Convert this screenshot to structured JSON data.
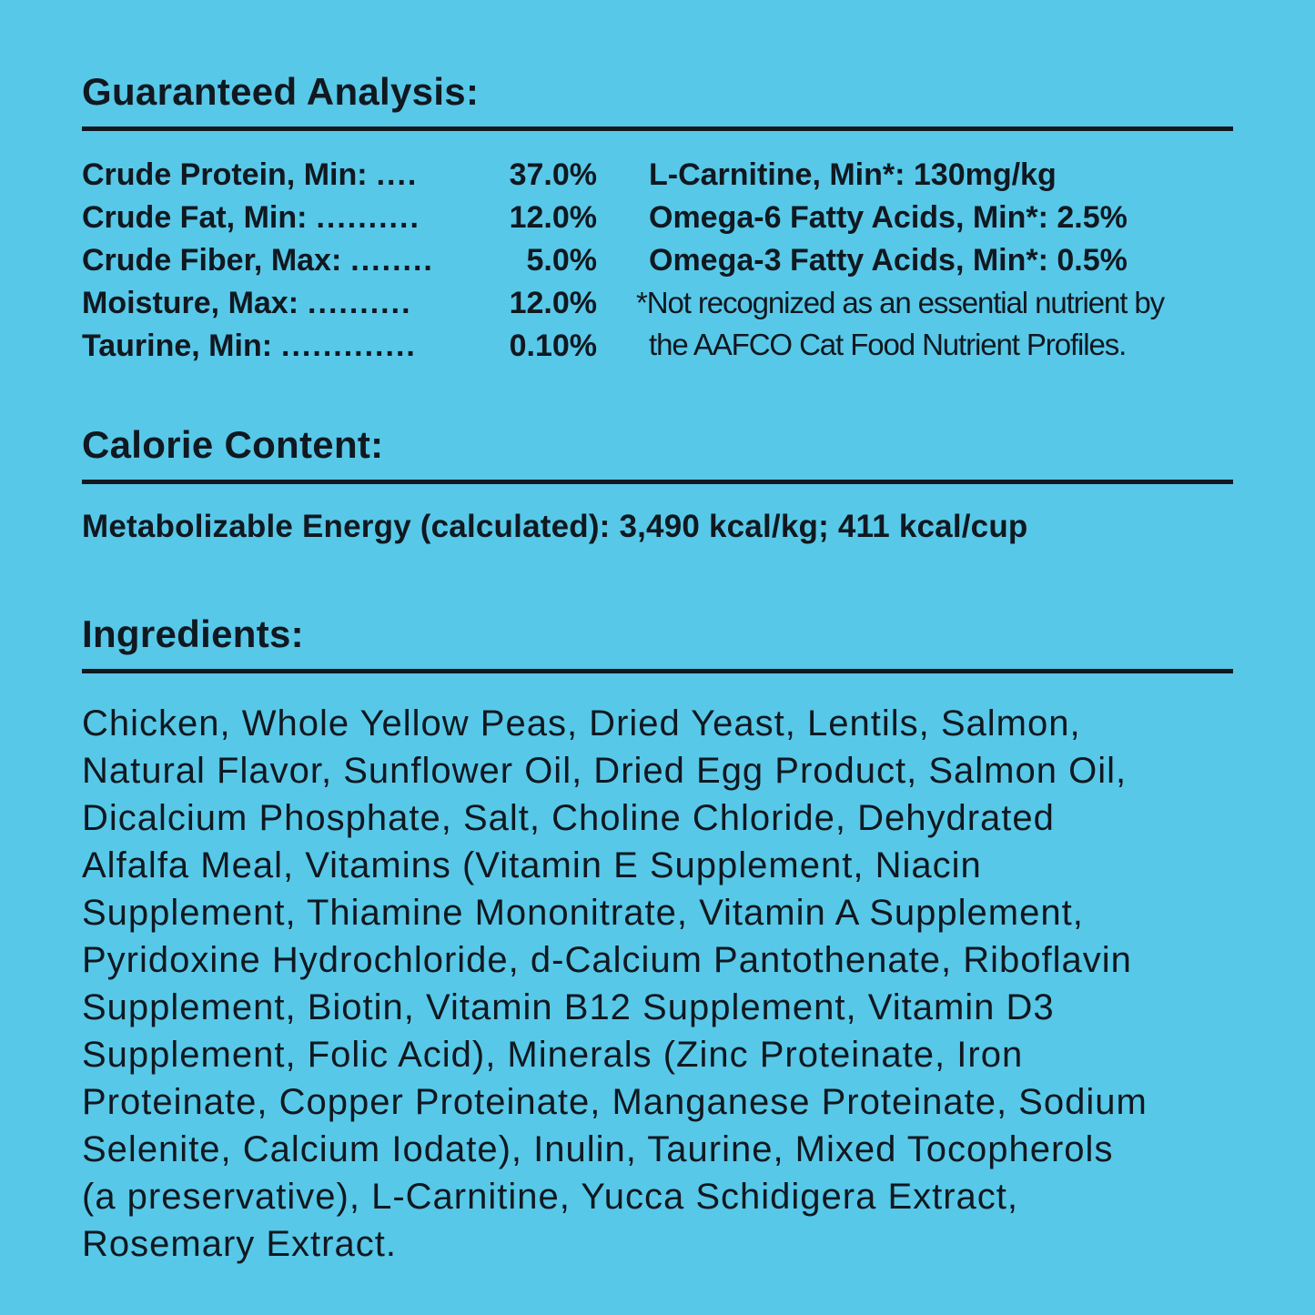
{
  "colors": {
    "background": "#58C8E8",
    "text": "#101820"
  },
  "guaranteed_analysis": {
    "title": "Guaranteed Analysis:",
    "rows": [
      {
        "label": "Crude Protein, Min:",
        "dots": "....",
        "value": "37.0%"
      },
      {
        "label": "Crude Fat, Min:",
        "dots": "..........",
        "value": "12.0%"
      },
      {
        "label": "Crude Fiber, Max:",
        "dots": "........",
        "value": "5.0%"
      },
      {
        "label": "Moisture, Max:",
        "dots": "..........",
        "value": "12.0%"
      },
      {
        "label": "Taurine, Min:",
        "dots": ".............",
        "value": "0.10%"
      }
    ],
    "extra_rows": [
      "L-Carnitine, Min*: 130mg/kg",
      "Omega-6 Fatty Acids, Min*: 2.5%",
      "Omega-3 Fatty Acids, Min*: 0.5%"
    ],
    "footnote_lines": [
      "*Not recognized as an essential nutrient by",
      "the AAFCO Cat Food Nutrient Profiles."
    ]
  },
  "calorie_content": {
    "title": "Calorie Content:",
    "line": "Metabolizable Energy (calculated): 3,490 kcal/kg; 411 kcal/cup"
  },
  "ingredients": {
    "title": "Ingredients:",
    "lines": [
      "Chicken, Whole Yellow Peas, Dried Yeast, Lentils, Salmon,",
      "Natural Flavor, Sunflower Oil, Dried Egg Product, Salmon Oil,",
      "Dicalcium Phosphate, Salt, Choline Chloride, Dehydrated",
      "Alfalfa Meal, Vitamins (Vitamin E Supplement, Niacin",
      "Supplement, Thiamine Mononitrate, Vitamin A Supplement,",
      "Pyridoxine Hydrochloride, d-Calcium Pantothenate, Riboflavin",
      "Supplement, Biotin, Vitamin B12 Supplement, Vitamin D3",
      "Supplement, Folic Acid), Minerals (Zinc Proteinate, Iron",
      "Proteinate, Copper Proteinate, Manganese Proteinate, Sodium",
      "Selenite, Calcium Iodate), Inulin, Taurine, Mixed Tocopherols",
      "(a preservative), L-Carnitine, Yucca Schidigera Extract,",
      "Rosemary Extract."
    ]
  }
}
